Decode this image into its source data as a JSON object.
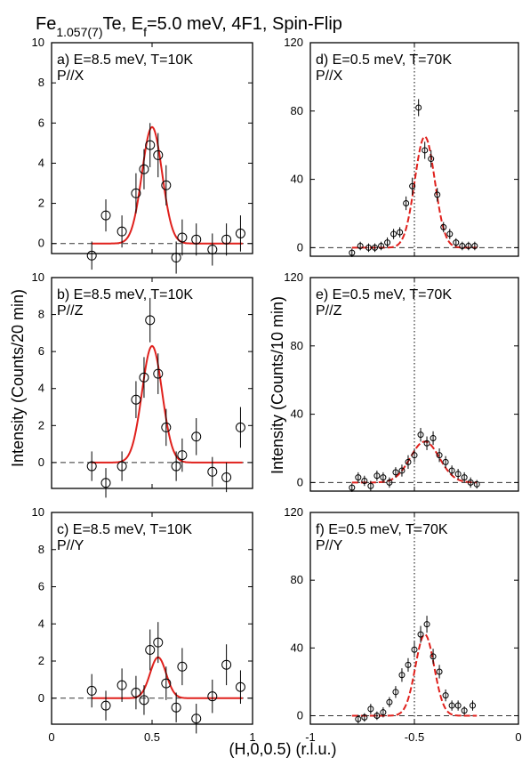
{
  "page": {
    "title_parts": {
      "t1": "Fe",
      "t2": "1.057(7)",
      "t3": "Te, E",
      "t4": "f",
      "t5": "=5.0 meV, 4F1, Spin-Flip"
    },
    "ylabel_left": "Intensity (Counts/20 min)",
    "ylabel_right": "Intensity (Counts/10 min)",
    "xlabel": "(H,0,0.5) (r.l.u.)"
  },
  "colors": {
    "fit": "#e0201c",
    "data": "#000000",
    "baseline": "#333333"
  },
  "chart_data": [
    {
      "id": "a",
      "type": "scatter",
      "label_line1": "a) E=8.5 meV, T=10K",
      "label_line2": "P//X",
      "xlim": [
        0,
        1
      ],
      "ylim": [
        -0.5,
        10
      ],
      "yticks": [
        0,
        2,
        4,
        6,
        8,
        10
      ],
      "x": [
        0.2,
        0.27,
        0.35,
        0.42,
        0.46,
        0.49,
        0.53,
        0.57,
        0.62,
        0.65,
        0.72,
        0.8,
        0.87,
        0.94
      ],
      "y": [
        -0.6,
        1.4,
        0.6,
        2.5,
        3.7,
        4.9,
        4.4,
        2.9,
        -0.7,
        0.3,
        0.2,
        -0.3,
        0.2,
        0.5
      ],
      "yerr": [
        0.7,
        0.8,
        0.8,
        1.0,
        1.0,
        1.1,
        1.1,
        1.0,
        0.8,
        0.9,
        0.8,
        0.8,
        0.8,
        0.9
      ],
      "fit": {
        "type": "gaussian",
        "amp": 5.8,
        "center": 0.5,
        "sigma": 0.05,
        "range": [
          0.2,
          0.95
        ],
        "style": "solid"
      }
    },
    {
      "id": "b",
      "type": "scatter",
      "label_line1": "b) E=8.5 meV, T=10K",
      "label_line2": "P//Z",
      "xlim": [
        0,
        1
      ],
      "ylim": [
        -1.4,
        10
      ],
      "yticks": [
        0,
        2,
        4,
        6,
        8,
        10
      ],
      "x": [
        0.2,
        0.27,
        0.35,
        0.42,
        0.46,
        0.49,
        0.53,
        0.57,
        0.62,
        0.65,
        0.72,
        0.8,
        0.87,
        0.94
      ],
      "y": [
        -0.2,
        -1.1,
        -0.2,
        3.4,
        4.6,
        7.7,
        4.8,
        1.9,
        -0.2,
        0.4,
        1.4,
        -0.5,
        -0.8,
        1.9
      ],
      "yerr": [
        0.8,
        0.8,
        0.8,
        1.0,
        1.1,
        1.2,
        1.1,
        1.0,
        0.8,
        0.9,
        1.0,
        0.8,
        0.8,
        1.1
      ],
      "fit": {
        "type": "gaussian",
        "amp": 6.3,
        "center": 0.5,
        "sigma": 0.05,
        "range": [
          0.2,
          0.95
        ],
        "style": "solid"
      }
    },
    {
      "id": "c",
      "type": "scatter",
      "label_line1": "c) E=8.5 meV, T=10K",
      "label_line2": "P//Y",
      "xlim": [
        0,
        1
      ],
      "ylim": [
        -1.4,
        10
      ],
      "yticks": [
        0,
        2,
        4,
        6,
        8,
        10
      ],
      "xticks": [
        "0",
        "0.5",
        "1"
      ],
      "x": [
        0.2,
        0.27,
        0.35,
        0.42,
        0.46,
        0.49,
        0.53,
        0.57,
        0.62,
        0.65,
        0.72,
        0.8,
        0.87,
        0.94
      ],
      "y": [
        0.4,
        -0.4,
        0.7,
        0.3,
        -0.1,
        2.6,
        3.0,
        0.8,
        -0.5,
        1.7,
        -1.1,
        0.1,
        1.8,
        0.6
      ],
      "yerr": [
        0.9,
        0.8,
        0.9,
        0.9,
        0.8,
        1.1,
        1.1,
        0.9,
        0.8,
        1.0,
        0.8,
        0.9,
        1.1,
        0.9
      ],
      "fit": {
        "type": "gaussian",
        "amp": 2.2,
        "center": 0.53,
        "sigma": 0.04,
        "range": [
          0.2,
          0.95
        ],
        "style": "solid"
      }
    },
    {
      "id": "d",
      "type": "scatter",
      "label_line1": "d) E=0.5 meV, T=70K",
      "label_line2": "P//X",
      "xlim": [
        -1,
        0
      ],
      "ylim": [
        -5,
        120
      ],
      "yticks": [
        0,
        40,
        80,
        120
      ],
      "vline": -0.5,
      "x": [
        -0.8,
        -0.76,
        -0.72,
        -0.69,
        -0.66,
        -0.63,
        -0.6,
        -0.57,
        -0.54,
        -0.51,
        -0.48,
        -0.45,
        -0.42,
        -0.39,
        -0.36,
        -0.33,
        -0.3,
        -0.27,
        -0.24,
        -0.21
      ],
      "y": [
        -3,
        1,
        0,
        0,
        1,
        3,
        8,
        9,
        26,
        36,
        82,
        57,
        52,
        31,
        12,
        8,
        3,
        1,
        1,
        1
      ],
      "yerr": [
        2.5,
        2.5,
        2.5,
        2.5,
        2.5,
        3,
        3,
        3,
        4,
        5,
        5,
        5,
        5,
        4,
        3,
        3,
        2.5,
        2.5,
        2.5,
        2.5
      ],
      "fit": {
        "type": "gaussian",
        "amp": 65,
        "center": -0.45,
        "sigma": 0.048,
        "range": [
          -0.8,
          -0.2
        ],
        "style": "dashed"
      }
    },
    {
      "id": "e",
      "type": "scatter",
      "label_line1": "e) E=0.5 meV, T=70K",
      "label_line2": "P//Z",
      "xlim": [
        -1,
        0
      ],
      "ylim": [
        -5,
        120
      ],
      "yticks": [
        0,
        40,
        80,
        120
      ],
      "vline": -0.5,
      "x": [
        -0.8,
        -0.77,
        -0.74,
        -0.71,
        -0.68,
        -0.65,
        -0.62,
        -0.59,
        -0.56,
        -0.53,
        -0.5,
        -0.47,
        -0.44,
        -0.41,
        -0.38,
        -0.35,
        -0.32,
        -0.29,
        -0.26,
        -0.23,
        -0.2
      ],
      "y": [
        -3,
        3,
        1,
        -2,
        4,
        3,
        0,
        6,
        7,
        12,
        16,
        28,
        23,
        26,
        16,
        12,
        7,
        5,
        3,
        0,
        -1
      ],
      "yerr": [
        2.5,
        3,
        3,
        3,
        3,
        3,
        3,
        3,
        3.5,
        4,
        4,
        4,
        4,
        4,
        4,
        3.5,
        3,
        3,
        3,
        3,
        2.5
      ],
      "fit": {
        "type": "gaussian",
        "amp": 24,
        "center": -0.45,
        "sigma": 0.07,
        "range": [
          -0.8,
          -0.2
        ],
        "style": "dashed"
      }
    },
    {
      "id": "f",
      "type": "scatter",
      "label_line1": "f) E=0.5 meV, T=70K",
      "label_line2": "P//Y",
      "xlim": [
        -1,
        0
      ],
      "ylim": [
        -5,
        120
      ],
      "yticks": [
        0,
        40,
        80,
        120
      ],
      "xticks": [
        "-1",
        "-0.5",
        "0"
      ],
      "vline": -0.5,
      "x": [
        -0.77,
        -0.74,
        -0.71,
        -0.68,
        -0.65,
        -0.62,
        -0.59,
        -0.56,
        -0.53,
        -0.5,
        -0.47,
        -0.44,
        -0.41,
        -0.38,
        -0.35,
        -0.32,
        -0.29,
        -0.26,
        -0.22
      ],
      "y": [
        -2,
        -1,
        4,
        0,
        2,
        8,
        14,
        24,
        30,
        39,
        48,
        54,
        35,
        26,
        12,
        6,
        6,
        3,
        6
      ],
      "yerr": [
        2.5,
        2.5,
        3,
        2.5,
        3,
        3,
        3.5,
        4,
        4,
        4.5,
        5,
        5,
        4.5,
        4,
        3.5,
        3,
        3,
        2.5,
        3
      ],
      "fit": {
        "type": "gaussian",
        "amp": 48,
        "center": -0.45,
        "sigma": 0.045,
        "range": [
          -0.8,
          -0.2
        ],
        "style": "dashed"
      }
    }
  ]
}
